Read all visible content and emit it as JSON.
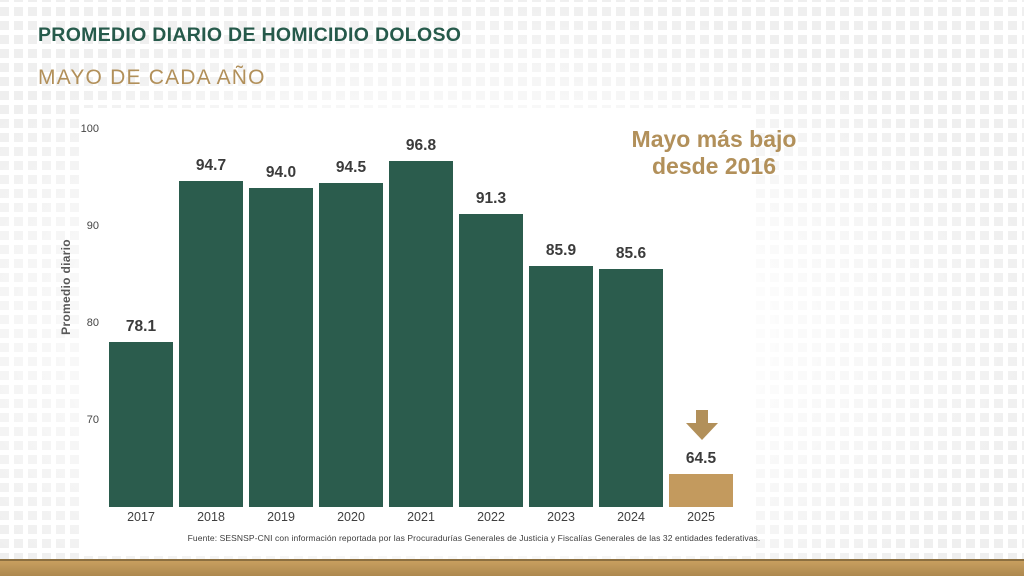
{
  "slide": {
    "title": "PROMEDIO DIARIO DE HOMICIDIO DOLOSO",
    "subtitle": "MAYO DE CADA AÑO",
    "annotation": {
      "line1": "Mayo más bajo",
      "line2": "desde 2016"
    },
    "source": "Fuente: SESNSP-CNI con información reportada por las Procuradurías Generales de Justicia y Fiscalías Generales de las 32 entidades federativas.",
    "icons": {
      "highlight_arrow": "down-arrow-icon"
    }
  },
  "colors": {
    "title_green": "#265a4b",
    "bar_green": "#2b5c4d",
    "highlight_tan": "#c39a5e",
    "accent_tan": "#b2905a",
    "band_tan_light": "#c89f5f",
    "band_tan_dark": "#ad884e"
  },
  "chart_data": {
    "type": "bar",
    "title": "PROMEDIO DIARIO DE HOMICIDIO DOLOSO",
    "subtitle": "MAYO DE CADA AÑO",
    "categories": [
      "2017",
      "2018",
      "2019",
      "2020",
      "2021",
      "2022",
      "2023",
      "2024",
      "2025"
    ],
    "values": [
      78.1,
      94.7,
      94.0,
      94.5,
      96.8,
      91.3,
      85.9,
      85.6,
      64.5
    ],
    "value_labels": [
      "78.1",
      "94.7",
      "94.0",
      "94.5",
      "96.8",
      "91.3",
      "85.9",
      "85.6",
      "64.5"
    ],
    "xlabel": "",
    "ylabel": "Promedio diario",
    "yticks": [
      70,
      80,
      90,
      100
    ],
    "ylim": [
      61.1,
      103
    ],
    "grid": false,
    "legend": false,
    "highlight_index": 8,
    "annotation": "Mayo más bajo desde 2016"
  }
}
